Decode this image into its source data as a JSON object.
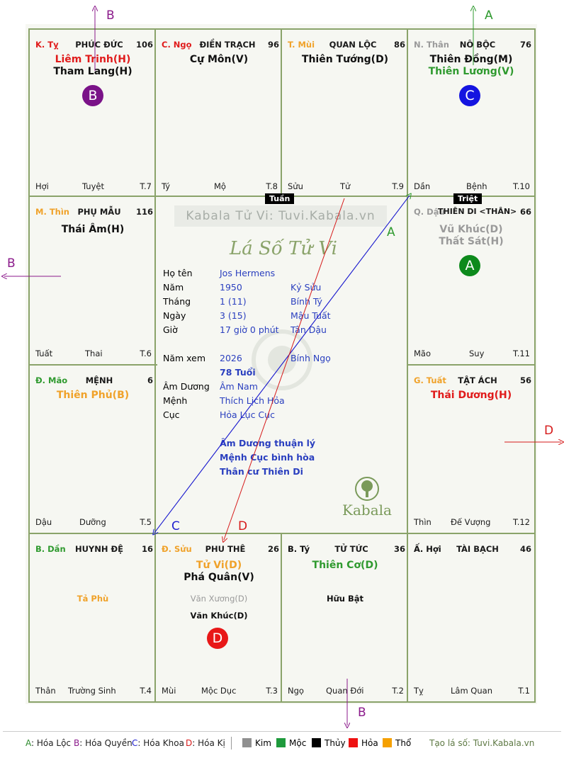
{
  "palaces": {
    "ty": {
      "chi": "K. Tỵ",
      "name": "PHÚC ĐỨC",
      "num": "106",
      "stars": [
        "Liêm Trinh(H)",
        "Tham Lang(H)"
      ],
      "foot": [
        "Hợi",
        "Tuyệt",
        "T.7"
      ]
    },
    "ngo": {
      "chi": "C. Ngọ",
      "name": "ĐIỀN TRẠCH",
      "num": "96",
      "stars": [
        "Cự Môn(V)"
      ],
      "foot": [
        "Tý",
        "Mộ",
        "T.8"
      ]
    },
    "mui": {
      "chi": "T. Mùi",
      "name": "QUAN LỘC",
      "num": "86",
      "stars": [
        "Thiên Tướng(D)"
      ],
      "foot": [
        "Sửu",
        "Tử",
        "T.9"
      ]
    },
    "than_palace": {
      "chi": "N. Thân",
      "name": "NÔ BỘC",
      "num": "76",
      "stars": [
        "Thiên Đồng(M)",
        "Thiên Lương(V)"
      ],
      "foot": [
        "Dần",
        "Bệnh",
        "T.10"
      ]
    },
    "thin": {
      "chi": "M. Thìn",
      "name": "PHỤ MẪU",
      "num": "116",
      "stars": [
        "Thái Âm(H)"
      ],
      "foot": [
        "Tuất",
        "Thai",
        "T.6"
      ]
    },
    "dau": {
      "chi": "Q. Dậu",
      "name": "THIÊN DI <THÂN>",
      "num": "66",
      "stars": [
        "Vũ Khúc(D)",
        "Thất Sát(H)"
      ],
      "foot": [
        "Mão",
        "Suy",
        "T.11"
      ]
    },
    "mao": {
      "chi": "Đ. Mão",
      "name": "MỆNH",
      "num": "6",
      "stars": [
        "Thiên Phủ(B)"
      ],
      "foot": [
        "Dậu",
        "Dưỡng",
        "T.5"
      ]
    },
    "tuat": {
      "chi": "G. Tuất",
      "name": "TẬT ÁCH",
      "num": "56",
      "stars": [
        "Thái Dương(H)"
      ],
      "foot": [
        "Thìn",
        "Đế Vượng",
        "T.12"
      ]
    },
    "dan": {
      "chi": "B. Dần",
      "name": "HUYNH ĐỆ",
      "num": "16",
      "stars": [],
      "minor": [
        "Tả Phù"
      ],
      "foot": [
        "Thân",
        "Trường Sinh",
        "T.4"
      ]
    },
    "suu": {
      "chi": "Đ. Sửu",
      "name": "PHU THÊ",
      "num": "26",
      "stars": [
        "Tử Vi(D)",
        "Phá Quân(V)"
      ],
      "minor": [
        "Văn Xương(D)",
        "Văn Khúc(D)"
      ],
      "foot": [
        "Mùi",
        "Mộc Dục",
        "T.3"
      ]
    },
    "ti": {
      "chi": "B. Tý",
      "name": "TỬ TỨC",
      "num": "36",
      "stars": [
        "Thiên Cơ(D)"
      ],
      "minor": [
        "Hữu Bật"
      ],
      "foot": [
        "Ngọ",
        "Quan Đới",
        "T.2"
      ]
    },
    "hoi": {
      "chi": "Ấ. Hợi",
      "name": "TÀI BẠCH",
      "num": "46",
      "stars": [],
      "foot": [
        "Tỵ",
        "Lâm Quan",
        "T.1"
      ]
    }
  },
  "tags": {
    "tuan": "Tuần",
    "triet": "Triệt"
  },
  "badges": {
    "a": "A",
    "b": "B",
    "c": "C",
    "d": "D"
  },
  "center": {
    "watermark": "Kabala Tử Vi: Tuvi.Kabala.vn",
    "title": "Lá Số Tử Vi",
    "logo_text": "Kabala",
    "rows": [
      {
        "label": "Họ tên",
        "v1": "Jos Hermens",
        "v2": ""
      },
      {
        "label": "Năm",
        "v1": "1950",
        "v2": "Kỷ Sửu"
      },
      {
        "label": "Tháng",
        "v1": "1  (11)",
        "v2": "Bính Tý"
      },
      {
        "label": "Ngày",
        "v1": "3  (15)",
        "v2": "Mậu Tuất"
      },
      {
        "label": "Giờ",
        "v1": "17 giờ 0 phút",
        "v2": "Tân Dậu"
      },
      {
        "label": "Năm xem",
        "v1": "2026",
        "v2": "Bính Ngọ"
      },
      {
        "label": "",
        "v1": "78 Tuổi",
        "v2": ""
      },
      {
        "label": "Âm Dương",
        "v1": "Âm Nam",
        "v2": ""
      },
      {
        "label": "Mệnh",
        "v1": "Thích Lịch Hỏa",
        "v2": ""
      },
      {
        "label": "Cục",
        "v1": "Hỏa Lục Cục",
        "v2": ""
      }
    ],
    "notes": [
      "Âm Dương thuận lý",
      "Mệnh Cục bình hòa",
      "Thân cư Thiên Di"
    ]
  },
  "arrow_letters": {
    "b_top": "B",
    "a_top": "A",
    "b_left": "B",
    "d_right": "D",
    "b_bottom": "B",
    "a_mid": "A",
    "c_mid": "C",
    "d_mid": "D"
  },
  "legend": {
    "hoa": [
      {
        "key": "A",
        "text": ": Hóa Lộc",
        "color": "#2e8b2e"
      },
      {
        "key": "B",
        "text": ": Hóa Quyền",
        "color": "#8b1a8b"
      },
      {
        "key": "C",
        "text": ": Hóa Khoa",
        "color": "#1f1fcf"
      },
      {
        "key": "D",
        "text": ": Hóa Kị",
        "color": "#d61a1a"
      }
    ],
    "elements": [
      {
        "name": "Kim",
        "color": "#909090"
      },
      {
        "name": "Mộc",
        "color": "#1e9a3c"
      },
      {
        "name": "Thủy",
        "color": "#000000"
      },
      {
        "name": "Hỏa",
        "color": "#ee1111"
      },
      {
        "name": "Thổ",
        "color": "#f5a000"
      }
    ],
    "site": "Tạo lá số: Tuvi.Kabala.vn"
  },
  "colors": {
    "grid": "#8aa36a",
    "red": "#e01b1b",
    "green": "#2f9a2f",
    "orange": "#f0a22a",
    "gray": "#9a9a9a",
    "blue": "#2a3fbf",
    "purple": "#8b1a8b"
  }
}
